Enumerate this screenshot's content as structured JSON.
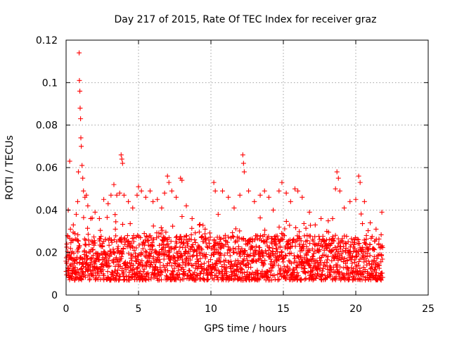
{
  "chart_data": {
    "type": "scatter",
    "title": "Day 217 of 2015, Rate Of TEC Index for receiver graz",
    "xlabel": "GPS time / hours",
    "ylabel": "ROTI / TECUs",
    "xlim": [
      0,
      25
    ],
    "ylim": [
      0,
      0.12
    ],
    "xticks": [
      0,
      5,
      10,
      15,
      20,
      25
    ],
    "yticks": [
      0,
      0.02,
      0.04,
      0.06,
      0.08,
      0.1,
      0.12
    ],
    "xtick_labels": [
      "0",
      "5",
      "10",
      "15",
      "20",
      "25"
    ],
    "ytick_labels": [
      "0",
      "0.02",
      "0.04",
      "0.06",
      "0.08",
      "0.1",
      "0.12"
    ],
    "grid": true,
    "marker": "plus",
    "color": "#ff0000",
    "series": [
      {
        "values": [
          [
            0.05,
            0.024
          ],
          [
            0.1,
            0.028
          ],
          [
            0.15,
            0.04
          ],
          [
            0.2,
            0.019
          ],
          [
            0.25,
            0.063
          ],
          [
            0.3,
            0.031
          ],
          [
            0.4,
            0.026
          ],
          [
            0.5,
            0.033
          ],
          [
            0.6,
            0.029
          ],
          [
            0.7,
            0.038
          ],
          [
            0.8,
            0.044
          ],
          [
            0.85,
            0.058
          ],
          [
            0.9,
            0.114
          ],
          [
            0.92,
            0.101
          ],
          [
            0.95,
            0.096
          ],
          [
            0.97,
            0.088
          ],
          [
            1.0,
            0.083
          ],
          [
            1.02,
            0.074
          ],
          [
            1.05,
            0.07
          ],
          [
            1.1,
            0.061
          ],
          [
            1.15,
            0.055
          ],
          [
            1.2,
            0.049
          ],
          [
            1.3,
            0.046
          ],
          [
            1.4,
            0.047
          ],
          [
            1.5,
            0.042
          ],
          [
            1.7,
            0.036
          ],
          [
            2.0,
            0.039
          ],
          [
            2.3,
            0.036
          ],
          [
            2.6,
            0.045
          ],
          [
            2.9,
            0.043
          ],
          [
            3.1,
            0.047
          ],
          [
            3.3,
            0.052
          ],
          [
            3.5,
            0.047
          ],
          [
            3.7,
            0.048
          ],
          [
            3.8,
            0.066
          ],
          [
            3.85,
            0.064
          ],
          [
            3.9,
            0.062
          ],
          [
            4.0,
            0.047
          ],
          [
            4.3,
            0.044
          ],
          [
            4.6,
            0.041
          ],
          [
            4.9,
            0.047
          ],
          [
            5.0,
            0.051
          ],
          [
            5.2,
            0.049
          ],
          [
            5.5,
            0.046
          ],
          [
            5.8,
            0.049
          ],
          [
            6.0,
            0.044
          ],
          [
            6.3,
            0.045
          ],
          [
            6.6,
            0.041
          ],
          [
            6.8,
            0.048
          ],
          [
            7.0,
            0.056
          ],
          [
            7.1,
            0.053
          ],
          [
            7.3,
            0.049
          ],
          [
            7.6,
            0.046
          ],
          [
            7.9,
            0.055
          ],
          [
            8.0,
            0.054
          ],
          [
            8.3,
            0.042
          ],
          [
            8.7,
            0.036
          ],
          [
            9.2,
            0.033
          ],
          [
            9.6,
            0.031
          ],
          [
            10.2,
            0.053
          ],
          [
            10.3,
            0.049
          ],
          [
            10.5,
            0.038
          ],
          [
            10.8,
            0.049
          ],
          [
            11.2,
            0.046
          ],
          [
            11.6,
            0.041
          ],
          [
            12.0,
            0.047
          ],
          [
            12.2,
            0.066
          ],
          [
            12.25,
            0.062
          ],
          [
            12.3,
            0.058
          ],
          [
            12.6,
            0.049
          ],
          [
            13.0,
            0.044
          ],
          [
            13.4,
            0.047
          ],
          [
            13.7,
            0.049
          ],
          [
            14.0,
            0.046
          ],
          [
            14.3,
            0.04
          ],
          [
            14.7,
            0.049
          ],
          [
            14.9,
            0.053
          ],
          [
            15.2,
            0.048
          ],
          [
            15.5,
            0.044
          ],
          [
            15.8,
            0.05
          ],
          [
            16.0,
            0.049
          ],
          [
            16.3,
            0.046
          ],
          [
            16.8,
            0.039
          ],
          [
            17.2,
            0.033
          ],
          [
            17.6,
            0.036
          ],
          [
            18.0,
            0.03
          ],
          [
            18.4,
            0.036
          ],
          [
            18.6,
            0.05
          ],
          [
            18.7,
            0.058
          ],
          [
            18.8,
            0.055
          ],
          [
            18.9,
            0.049
          ],
          [
            19.2,
            0.041
          ],
          [
            19.6,
            0.044
          ],
          [
            20.0,
            0.045
          ],
          [
            20.2,
            0.056
          ],
          [
            20.3,
            0.053
          ],
          [
            20.6,
            0.044
          ],
          [
            21.0,
            0.034
          ],
          [
            21.4,
            0.031
          ],
          [
            21.8,
            0.039
          ]
        ]
      }
    ]
  }
}
